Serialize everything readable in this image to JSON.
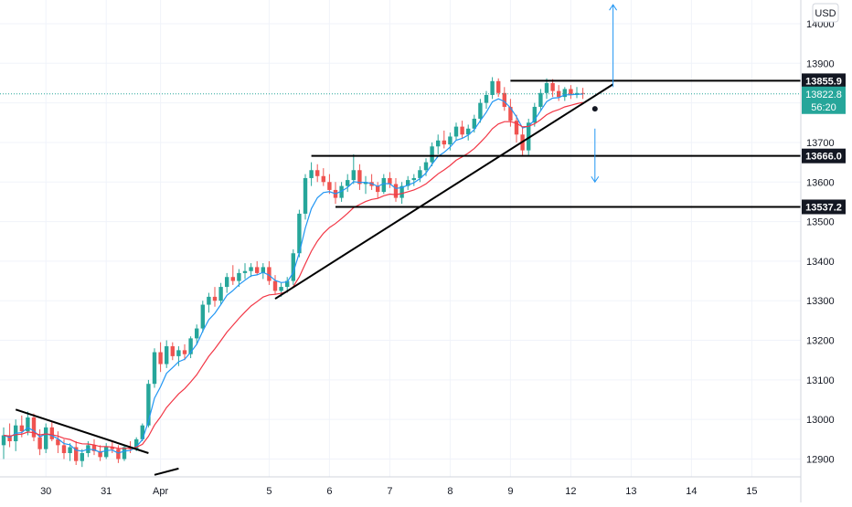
{
  "currency": "USD",
  "colors": {
    "up": "#26a69a",
    "down": "#ef5350",
    "ema_fast": "#2196f3",
    "ema_slow": "#f23645",
    "price_line": "#26a69a",
    "drawing": "#000000",
    "arrow": "#2196f3",
    "grid": "#f0f3fa",
    "axis_text": "#131722"
  },
  "chart_data": {
    "type": "candlestick",
    "title": "",
    "xlabel": "",
    "ylabel": "",
    "ylim": [
      12855,
      14060
    ],
    "y_ticks": [
      12900,
      13000,
      13100,
      13200,
      13300,
      13400,
      13500,
      13600,
      13700,
      13800,
      13900,
      14000
    ],
    "x_ticks": [
      {
        "label": "30",
        "bar": 7
      },
      {
        "label": "31",
        "bar": 17
      },
      {
        "label": "Apr",
        "bar": 26
      },
      {
        "label": "5",
        "bar": 44
      },
      {
        "label": "6",
        "bar": 54
      },
      {
        "label": "7",
        "bar": 64
      },
      {
        "label": "8",
        "bar": 74
      },
      {
        "label": "9",
        "bar": 84
      },
      {
        "label": "12",
        "bar": 94
      },
      {
        "label": "13",
        "bar": 104
      },
      {
        "label": "14",
        "bar": 114
      },
      {
        "label": "15",
        "bar": 124
      }
    ],
    "grid": true,
    "last_price": 13822.8,
    "countdown": "56:20",
    "price_labels": [
      13855.9,
      13666.0,
      13537.2
    ],
    "levels": [
      {
        "value": 13855.9,
        "from_bar": 84
      },
      {
        "value": 13666.0,
        "from_bar": 51
      },
      {
        "value": 13537.2,
        "from_bar": 55
      }
    ],
    "trendlines": [
      {
        "from": [
          2,
          13025
        ],
        "to": [
          24,
          12915
        ]
      },
      {
        "from": [
          45,
          13305
        ],
        "to": [
          101,
          13847
        ]
      },
      {
        "from": [
          25,
          12860
        ],
        "to": [
          29,
          12876
        ]
      }
    ],
    "arrows": [
      {
        "bar": 101,
        "from": 13840,
        "to": 14048
      },
      {
        "bar": 98,
        "from": 13735,
        "to": 13600
      }
    ],
    "anchor_points": [
      {
        "bar": 98,
        "value": 13785
      }
    ],
    "candles": [
      [
        12935,
        12980,
        12900,
        12960
      ],
      [
        12960,
        12990,
        12930,
        12945
      ],
      [
        12945,
        13000,
        12920,
        12985
      ],
      [
        12985,
        13010,
        12955,
        12970
      ],
      [
        12970,
        13020,
        12960,
        13005
      ],
      [
        13005,
        13015,
        12945,
        12955
      ],
      [
        12955,
        12975,
        12910,
        12925
      ],
      [
        12925,
        12990,
        12915,
        12980
      ],
      [
        12980,
        12995,
        12945,
        12950
      ],
      [
        12950,
        12970,
        12915,
        12935
      ],
      [
        12935,
        12950,
        12900,
        12915
      ],
      [
        12915,
        12940,
        12895,
        12930
      ],
      [
        12930,
        12945,
        12885,
        12895
      ],
      [
        12895,
        12925,
        12880,
        12915
      ],
      [
        12915,
        12945,
        12905,
        12935
      ],
      [
        12935,
        12950,
        12910,
        12920
      ],
      [
        12920,
        12935,
        12895,
        12905
      ],
      [
        12905,
        12940,
        12900,
        12930
      ],
      [
        12930,
        12945,
        12915,
        12925
      ],
      [
        12925,
        12935,
        12890,
        12900
      ],
      [
        12900,
        12935,
        12895,
        12930
      ],
      [
        12930,
        12945,
        12915,
        12925
      ],
      [
        12925,
        12955,
        12920,
        12950
      ],
      [
        12950,
        12990,
        12945,
        12985
      ],
      [
        12985,
        13100,
        12980,
        13090
      ],
      [
        13090,
        13180,
        13080,
        13170
      ],
      [
        13170,
        13195,
        13120,
        13140
      ],
      [
        13140,
        13200,
        13130,
        13185
      ],
      [
        13185,
        13195,
        13150,
        13160
      ],
      [
        13160,
        13185,
        13135,
        13175
      ],
      [
        13175,
        13190,
        13150,
        13165
      ],
      [
        13165,
        13210,
        13155,
        13205
      ],
      [
        13205,
        13240,
        13190,
        13230
      ],
      [
        13230,
        13300,
        13220,
        13290
      ],
      [
        13290,
        13320,
        13270,
        13310
      ],
      [
        13310,
        13335,
        13285,
        13300
      ],
      [
        13300,
        13345,
        13290,
        13335
      ],
      [
        13335,
        13370,
        13320,
        13360
      ],
      [
        13360,
        13390,
        13340,
        13350
      ],
      [
        13350,
        13380,
        13335,
        13370
      ],
      [
        13370,
        13395,
        13355,
        13375
      ],
      [
        13375,
        13395,
        13360,
        13385
      ],
      [
        13385,
        13400,
        13365,
        13370
      ],
      [
        13370,
        13395,
        13355,
        13385
      ],
      [
        13385,
        13400,
        13340,
        13350
      ],
      [
        13350,
        13365,
        13315,
        13325
      ],
      [
        13325,
        13345,
        13310,
        13335
      ],
      [
        13335,
        13360,
        13320,
        13350
      ],
      [
        13350,
        13430,
        13340,
        13420
      ],
      [
        13420,
        13530,
        13410,
        13520
      ],
      [
        13520,
        13620,
        13505,
        13610
      ],
      [
        13610,
        13650,
        13590,
        13630
      ],
      [
        13630,
        13645,
        13600,
        13615
      ],
      [
        13615,
        13635,
        13590,
        13600
      ],
      [
        13600,
        13620,
        13570,
        13580
      ],
      [
        13580,
        13600,
        13545,
        13560
      ],
      [
        13560,
        13600,
        13550,
        13590
      ],
      [
        13590,
        13620,
        13575,
        13605
      ],
      [
        13605,
        13670,
        13595,
        13630
      ],
      [
        13630,
        13645,
        13580,
        13595
      ],
      [
        13595,
        13615,
        13570,
        13600
      ],
      [
        13600,
        13620,
        13580,
        13590
      ],
      [
        13590,
        13600,
        13560,
        13575
      ],
      [
        13575,
        13620,
        13570,
        13610
      ],
      [
        13610,
        13625,
        13585,
        13595
      ],
      [
        13595,
        13610,
        13550,
        13560
      ],
      [
        13560,
        13600,
        13545,
        13590
      ],
      [
        13590,
        13615,
        13580,
        13605
      ],
      [
        13605,
        13620,
        13590,
        13610
      ],
      [
        13610,
        13640,
        13600,
        13630
      ],
      [
        13630,
        13660,
        13615,
        13650
      ],
      [
        13650,
        13700,
        13640,
        13690
      ],
      [
        13690,
        13720,
        13670,
        13705
      ],
      [
        13705,
        13730,
        13685,
        13695
      ],
      [
        13695,
        13725,
        13680,
        13715
      ],
      [
        13715,
        13750,
        13705,
        13740
      ],
      [
        13740,
        13755,
        13710,
        13720
      ],
      [
        13720,
        13745,
        13705,
        13735
      ],
      [
        13735,
        13770,
        13725,
        13760
      ],
      [
        13760,
        13810,
        13750,
        13800
      ],
      [
        13800,
        13830,
        13785,
        13820
      ],
      [
        13820,
        13865,
        13810,
        13855
      ],
      [
        13855,
        13862,
        13815,
        13825
      ],
      [
        13825,
        13840,
        13780,
        13790
      ],
      [
        13790,
        13810,
        13740,
        13755
      ],
      [
        13755,
        13770,
        13700,
        13720
      ],
      [
        13720,
        13740,
        13665,
        13680
      ],
      [
        13680,
        13760,
        13668,
        13750
      ],
      [
        13750,
        13800,
        13740,
        13790
      ],
      [
        13790,
        13835,
        13780,
        13825
      ],
      [
        13825,
        13862,
        13810,
        13850
      ],
      [
        13850,
        13860,
        13815,
        13830
      ],
      [
        13830,
        13845,
        13805,
        13815
      ],
      [
        13815,
        13840,
        13805,
        13835
      ],
      [
        13835,
        13845,
        13810,
        13820
      ],
      [
        13820,
        13840,
        13812,
        13825
      ],
      [
        13825,
        13838,
        13810,
        13822.8
      ]
    ]
  }
}
